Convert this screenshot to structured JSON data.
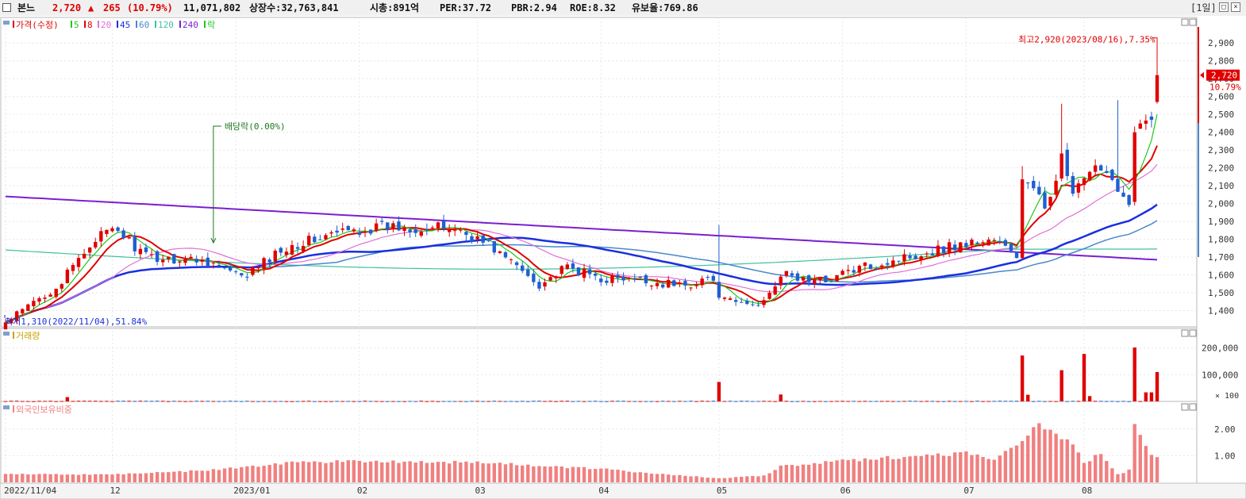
{
  "header": {
    "name": "본느",
    "price": "2,720",
    "change_arrow": "▲",
    "change": "265",
    "change_pct": "(10.79%)",
    "volume": "11,071,802",
    "shares": "상장수:32,763,841",
    "mktcap": "시총:891억",
    "per": "PER:37.72",
    "pbr": "PBR:2.94",
    "roe": "ROE:8.32",
    "reserve": "유보율:769.86",
    "period": "[1일]",
    "btn_restore": "□",
    "btn_close": "×"
  },
  "colors": {
    "up": "#e00000",
    "down": "#1f5fd0",
    "ma5": "#1ec81e",
    "ma8": "#e00000",
    "ma20": "#e070d8",
    "ma45": "#1a2fe0",
    "ma60": "#4a88cc",
    "ma120": "#40c0a0",
    "ma240": "#7a1fd0",
    "foreign": "#f08080"
  },
  "chart_data": [
    {
      "type": "candlestick",
      "panel": "price",
      "legend": [
        {
          "text": "가격(수정)",
          "color": "#e00000"
        },
        {
          "text": "5",
          "color": "#1ec81e"
        },
        {
          "text": "8",
          "color": "#e00000"
        },
        {
          "text": "20",
          "color": "#e070d8"
        },
        {
          "text": "45",
          "color": "#1a2fe0"
        },
        {
          "text": "60",
          "color": "#4a88cc"
        },
        {
          "text": "120",
          "color": "#40c0a0"
        },
        {
          "text": "240",
          "color": "#7a1fd0"
        },
        {
          "text": "락",
          "color": "#1ec81e"
        }
      ],
      "ylim": [
        1300,
        2990
      ],
      "yticks": [
        1400,
        1500,
        1600,
        1700,
        1800,
        1900,
        2000,
        2100,
        2200,
        2300,
        2400,
        2500,
        2600,
        2700,
        2800,
        2900
      ],
      "ytick_labels": [
        "1,400",
        "1,500",
        "1,600",
        "1,700",
        "1,800",
        "1,900",
        "2,000",
        "2,100",
        "2,200",
        "2,300",
        "2,400",
        "2,500",
        "2,600",
        "2,700",
        "2,800",
        "2,900"
      ],
      "x_dates": [
        "2022-11-04",
        "2022-12-01",
        "2023-01-02",
        "2023-02-01",
        "2023-03-02",
        "2023-04-03",
        "2023-05-02",
        "2023-06-01",
        "2023-07-03",
        "2023-08-01",
        "2023-08-18"
      ],
      "x_labels": [
        "2022/11/04",
        "12",
        "2023/01",
        "02",
        "03",
        "04",
        "05",
        "06",
        "07",
        "08"
      ],
      "close_keyframes": [
        {
          "date": "2022-11-04",
          "close": 1330
        },
        {
          "date": "2022-11-18",
          "close": 1560
        },
        {
          "date": "2022-11-28",
          "close": 1810
        },
        {
          "date": "2022-12-02",
          "close": 1850
        },
        {
          "date": "2022-12-09",
          "close": 1700
        },
        {
          "date": "2022-12-26",
          "close": 1680
        },
        {
          "date": "2023-01-03",
          "close": 1580
        },
        {
          "date": "2023-01-13",
          "close": 1760
        },
        {
          "date": "2023-01-27",
          "close": 1840
        },
        {
          "date": "2023-02-08",
          "close": 1870
        },
        {
          "date": "2023-02-24",
          "close": 1860
        },
        {
          "date": "2023-03-06",
          "close": 1770
        },
        {
          "date": "2023-03-17",
          "close": 1550
        },
        {
          "date": "2023-03-24",
          "close": 1640
        },
        {
          "date": "2023-04-03",
          "close": 1580
        },
        {
          "date": "2023-04-14",
          "close": 1560
        },
        {
          "date": "2023-04-24",
          "close": 1540
        },
        {
          "date": "2023-04-28",
          "close": 1590
        },
        {
          "date": "2023-05-03",
          "close": 1450
        },
        {
          "date": "2023-05-11",
          "close": 1430
        },
        {
          "date": "2023-05-17",
          "close": 1600
        },
        {
          "date": "2023-05-26",
          "close": 1560
        },
        {
          "date": "2023-06-02",
          "close": 1620
        },
        {
          "date": "2023-06-16",
          "close": 1700
        },
        {
          "date": "2023-06-28",
          "close": 1760
        },
        {
          "date": "2023-07-10",
          "close": 1800
        },
        {
          "date": "2023-07-14",
          "close": 1700
        },
        {
          "date": "2023-07-17",
          "close": 2150
        },
        {
          "date": "2023-07-21",
          "close": 1980
        },
        {
          "date": "2023-07-26",
          "close": 2250
        },
        {
          "date": "2023-07-28",
          "close": 2050
        },
        {
          "date": "2023-08-04",
          "close": 2220
        },
        {
          "date": "2023-08-09",
          "close": 2100
        },
        {
          "date": "2023-08-11",
          "close": 1980
        },
        {
          "date": "2023-08-14",
          "close": 2390
        },
        {
          "date": "2023-08-16",
          "close": 2450
        },
        {
          "date": "2023-08-17",
          "close": 2455
        },
        {
          "date": "2023-08-18",
          "close": 2720
        }
      ],
      "moving_averages": [
        "5",
        "8",
        "20",
        "45",
        "60",
        "120",
        "240"
      ],
      "ma240_range": [
        2040,
        1685
      ],
      "ma120_range": [
        1740,
        1745
      ],
      "annotations": {
        "high": "최고2,920(2023/08/16),7.35%",
        "low": "최저1,310(2022/11/04),51.84%",
        "dividend": "배당락(0.00%)",
        "dividend_date": "2022-12-27",
        "current_price": "2,720",
        "current_pct": "10.79%"
      }
    },
    {
      "type": "bar",
      "panel": "volume",
      "title": "거래량",
      "ylim": [
        0,
        220000
      ],
      "yticks": [
        100000,
        200000
      ],
      "ytick_labels": [
        "100,000",
        "200,000"
      ],
      "unit_label": "× 100",
      "spikes": [
        {
          "date": "2022-11-21",
          "value": 16000
        },
        {
          "date": "2023-05-02",
          "value": 73000
        },
        {
          "date": "2023-05-17",
          "value": 26000
        },
        {
          "date": "2023-07-17",
          "value": 172000
        },
        {
          "date": "2023-07-18",
          "value": 25000
        },
        {
          "date": "2023-07-26",
          "value": 117000
        },
        {
          "date": "2023-08-01",
          "value": 178000
        },
        {
          "date": "2023-08-02",
          "value": 20000
        },
        {
          "date": "2023-08-14",
          "value": 202000
        },
        {
          "date": "2023-08-16",
          "value": 34000
        },
        {
          "date": "2023-08-17",
          "value": 34000
        },
        {
          "date": "2023-08-18",
          "value": 110000
        }
      ]
    },
    {
      "type": "bar",
      "panel": "foreign",
      "title": "외국인보유비중",
      "ylim": [
        0,
        2.5
      ],
      "yticks": [
        1.0,
        2.0
      ],
      "ytick_labels": [
        "1.00",
        "2.00"
      ],
      "keyframes": [
        {
          "date": "2022-11-04",
          "value": 0.3
        },
        {
          "date": "2022-12-01",
          "value": 0.3
        },
        {
          "date": "2022-12-26",
          "value": 0.45
        },
        {
          "date": "2023-01-16",
          "value": 0.75
        },
        {
          "date": "2023-02-01",
          "value": 0.8
        },
        {
          "date": "2023-03-02",
          "value": 0.75
        },
        {
          "date": "2023-04-03",
          "value": 0.5
        },
        {
          "date": "2023-05-02",
          "value": 0.15
        },
        {
          "date": "2023-05-12",
          "value": 0.25
        },
        {
          "date": "2023-05-17",
          "value": 0.6
        },
        {
          "date": "2023-06-01",
          "value": 0.8
        },
        {
          "date": "2023-06-15",
          "value": 0.95
        },
        {
          "date": "2023-07-03",
          "value": 1.1
        },
        {
          "date": "2023-07-10",
          "value": 0.9
        },
        {
          "date": "2023-07-17",
          "value": 1.6
        },
        {
          "date": "2023-07-20",
          "value": 2.1
        },
        {
          "date": "2023-07-28",
          "value": 1.5
        },
        {
          "date": "2023-08-01",
          "value": 0.7
        },
        {
          "date": "2023-08-04",
          "value": 1.1
        },
        {
          "date": "2023-08-09",
          "value": 0.3
        },
        {
          "date": "2023-08-11",
          "value": 0.45
        },
        {
          "date": "2023-08-14",
          "value": 2.25
        },
        {
          "date": "2023-08-17",
          "value": 1.05
        },
        {
          "date": "2023-08-18",
          "value": 1.0
        }
      ]
    }
  ]
}
